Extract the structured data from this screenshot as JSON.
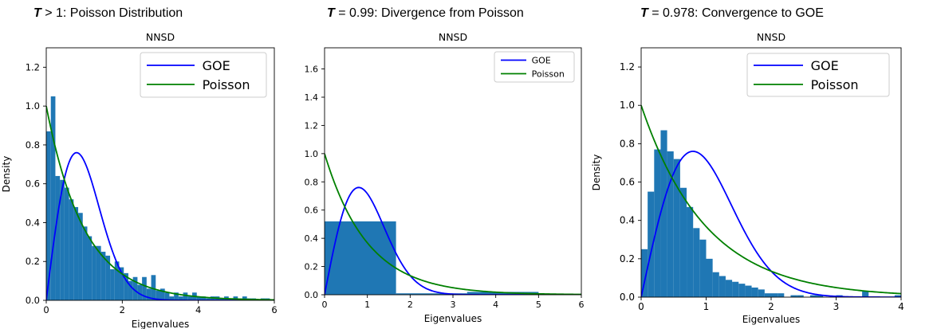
{
  "panels": [
    {
      "heading_symbol": "T",
      "heading_rest": " > 1: Poisson Distribution"
    },
    {
      "heading_symbol": "T",
      "heading_rest": " = 0.99: Divergence from Poisson"
    },
    {
      "heading_symbol": "T",
      "heading_rest": " = 0.978: Convergence to GOE"
    }
  ],
  "chart_data": [
    {
      "type": "bar",
      "title": "NNSD",
      "xlabel": "Eigenvalues",
      "ylabel": "Density",
      "xlim": [
        0,
        6
      ],
      "ylim": [
        0,
        1.3
      ],
      "xticks": [
        0,
        2,
        4,
        6
      ],
      "yticks": [
        0.0,
        0.2,
        0.4,
        0.6,
        0.8,
        1.0,
        1.2
      ],
      "grid": false,
      "legend_position": "top-right",
      "legend": [
        "GOE",
        "Poisson"
      ],
      "histogram": {
        "color": "#1f77b4",
        "bin_edges": [
          0,
          0.12,
          0.24,
          0.36,
          0.48,
          0.6,
          0.72,
          0.84,
          0.96,
          1.08,
          1.2,
          1.32,
          1.44,
          1.56,
          1.68,
          1.8,
          1.92,
          2.04,
          2.16,
          2.28,
          2.4,
          2.52,
          2.64,
          2.76,
          2.88,
          3.0,
          3.12,
          3.24,
          3.36,
          3.48,
          3.6,
          3.72,
          3.84,
          3.96,
          4.08,
          4.2,
          4.32,
          4.44,
          4.56,
          4.68,
          4.8,
          4.92,
          5.04,
          5.16,
          5.28,
          5.4,
          5.52,
          5.64,
          5.76,
          5.88,
          6.0
        ],
        "values": [
          0.87,
          1.05,
          0.64,
          0.62,
          0.58,
          0.52,
          0.48,
          0.45,
          0.38,
          0.33,
          0.28,
          0.28,
          0.25,
          0.23,
          0.16,
          0.2,
          0.17,
          0.14,
          0.1,
          0.12,
          0.08,
          0.12,
          0.06,
          0.13,
          0.05,
          0.06,
          0.04,
          0.02,
          0.04,
          0.02,
          0.04,
          0.02,
          0.04,
          0.02,
          0.02,
          0.01,
          0.02,
          0.02,
          0.01,
          0.02,
          0.01,
          0.02,
          0.01,
          0.02,
          0.01,
          0.01,
          0.0,
          0.01,
          0.01,
          0.0
        ]
      },
      "series": [
        {
          "name": "GOE",
          "color": "#0000ff",
          "function": "goe"
        },
        {
          "name": "Poisson",
          "color": "#008000",
          "function": "poisson"
        }
      ]
    },
    {
      "type": "bar",
      "title": "NNSD",
      "xlabel": "Eigenvalues",
      "ylabel": "",
      "xlim": [
        0,
        6
      ],
      "ylim": [
        0,
        1.75
      ],
      "xticks": [
        0,
        1,
        2,
        3,
        4,
        5,
        6
      ],
      "yticks": [
        0.0,
        0.2,
        0.4,
        0.6,
        0.8,
        1.0,
        1.2,
        1.4,
        1.6
      ],
      "grid": false,
      "legend_position": "top-right",
      "legend": [
        "GOE",
        "Poisson"
      ],
      "histogram": {
        "color": "#1f77b4",
        "bin_edges": [
          0,
          1.67,
          3.33,
          5.0
        ],
        "values": [
          0.52,
          0.01,
          0.02
        ]
      },
      "series": [
        {
          "name": "GOE",
          "color": "#0000ff",
          "function": "goe"
        },
        {
          "name": "Poisson",
          "color": "#008000",
          "function": "poisson"
        }
      ]
    },
    {
      "type": "bar",
      "title": "NNSD",
      "xlabel": "Eigenvalues",
      "ylabel": "Density",
      "xlim": [
        0,
        4
      ],
      "ylim": [
        0,
        1.3
      ],
      "xticks": [
        0,
        1,
        2,
        3,
        4
      ],
      "yticks": [
        0.0,
        0.2,
        0.4,
        0.6,
        0.8,
        1.0,
        1.2
      ],
      "grid": false,
      "legend_position": "top-right",
      "legend": [
        "GOE",
        "Poisson"
      ],
      "histogram": {
        "color": "#1f77b4",
        "bin_edges": [
          0.0,
          0.1,
          0.2,
          0.3,
          0.4,
          0.5,
          0.6,
          0.7,
          0.8,
          0.9,
          1.0,
          1.1,
          1.2,
          1.3,
          1.4,
          1.5,
          1.6,
          1.7,
          1.8,
          1.9,
          2.0,
          2.1,
          2.2,
          2.3,
          2.4,
          2.5,
          2.6,
          2.7,
          2.8,
          2.9,
          3.0,
          3.1,
          3.2,
          3.3,
          3.4,
          3.5,
          3.6,
          3.7,
          3.8,
          3.9,
          4.0
        ],
        "values": [
          0.25,
          0.55,
          0.77,
          0.87,
          0.76,
          0.72,
          0.57,
          0.47,
          0.36,
          0.3,
          0.2,
          0.13,
          0.11,
          0.09,
          0.08,
          0.07,
          0.06,
          0.05,
          0.04,
          0.02,
          0.02,
          0.02,
          0.0,
          0.01,
          0.01,
          0.0,
          0.01,
          0.01,
          0.0,
          0.0,
          0.01,
          0.0,
          0.0,
          0.0,
          0.03,
          0.0,
          0.0,
          0.0,
          0.0,
          0.01
        ]
      },
      "series": [
        {
          "name": "GOE",
          "color": "#0000ff",
          "function": "goe"
        },
        {
          "name": "Poisson",
          "color": "#008000",
          "function": "poisson"
        }
      ]
    }
  ]
}
